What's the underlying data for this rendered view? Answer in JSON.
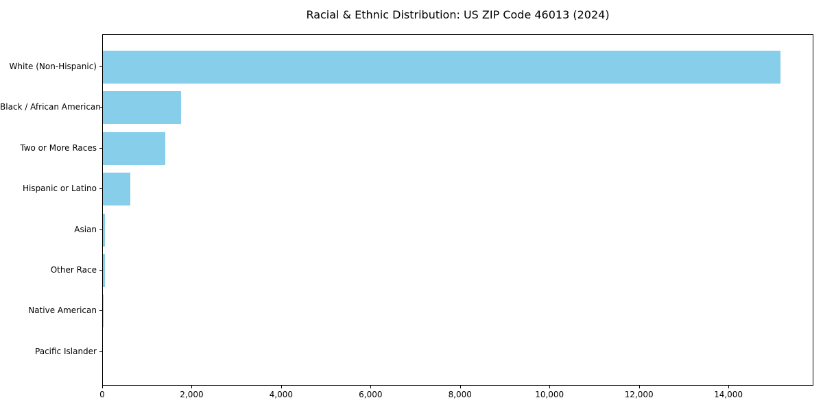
{
  "chart_data": {
    "type": "bar",
    "orientation": "horizontal",
    "title": "Racial & Ethnic Distribution: US ZIP Code 46013 (2024)",
    "categories": [
      "White (Non-Hispanic)",
      "Black / African American",
      "Two or More Races",
      "Hispanic or Latino",
      "Asian",
      "Other Race",
      "Native American",
      "Pacific Islander"
    ],
    "values": [
      15150,
      1750,
      1400,
      620,
      50,
      45,
      15,
      0
    ],
    "xlabel": "",
    "ylabel": "",
    "xlim": [
      0,
      15900
    ],
    "xticks": [
      0,
      2000,
      4000,
      6000,
      8000,
      10000,
      12000,
      14000
    ],
    "xtick_labels": [
      "0",
      "2,000",
      "4,000",
      "6,000",
      "8,000",
      "10,000",
      "12,000",
      "14,000"
    ],
    "bar_color": "#87CEEB",
    "background": "#FFFFFF",
    "grid": false,
    "legend": null
  }
}
